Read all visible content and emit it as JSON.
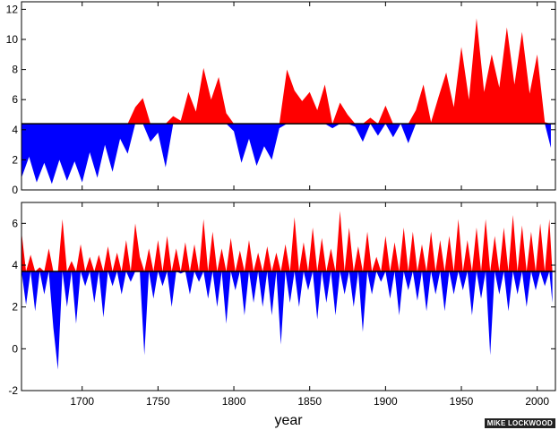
{
  "credit": "MIKE LOCKWOOD",
  "colors": {
    "above": "#ff0000",
    "below": "#0000ff",
    "axis": "#000000",
    "baseline": "#000000"
  },
  "chart_data": [
    {
      "type": "area",
      "panel": "top",
      "title": "",
      "xlabel": "",
      "ylabel": "",
      "xlim": [
        1660,
        2012
      ],
      "ylim": [
        0,
        12.5
      ],
      "yticks": [
        0,
        2,
        4,
        6,
        8,
        10,
        12
      ],
      "baseline": 4.4,
      "fill": "above red, below blue",
      "x": [
        1660,
        1665,
        1670,
        1675,
        1680,
        1685,
        1690,
        1695,
        1700,
        1705,
        1710,
        1715,
        1720,
        1725,
        1730,
        1735,
        1740,
        1745,
        1750,
        1755,
        1760,
        1765,
        1770,
        1775,
        1780,
        1785,
        1790,
        1795,
        1800,
        1805,
        1810,
        1815,
        1820,
        1825,
        1830,
        1835,
        1840,
        1845,
        1850,
        1855,
        1860,
        1865,
        1870,
        1875,
        1880,
        1885,
        1890,
        1895,
        1900,
        1905,
        1910,
        1915,
        1920,
        1925,
        1930,
        1935,
        1940,
        1945,
        1950,
        1955,
        1960,
        1965,
        1970,
        1975,
        1980,
        1985,
        1990,
        1995,
        2000,
        2005,
        2009
      ],
      "values": [
        0.8,
        2.2,
        0.5,
        1.8,
        0.4,
        2.0,
        0.6,
        1.9,
        0.5,
        2.5,
        0.8,
        3.0,
        1.2,
        3.4,
        2.4,
        5.5,
        6.1,
        3.2,
        3.8,
        1.5,
        4.9,
        4.6,
        6.5,
        5.2,
        8.1,
        6.0,
        7.5,
        5.1,
        3.9,
        1.8,
        3.4,
        1.6,
        2.9,
        2.0,
        4.1,
        8.0,
        6.6,
        5.9,
        6.5,
        5.3,
        7.0,
        4.1,
        5.8,
        5.0,
        4.2,
        3.2,
        4.8,
        3.6,
        5.6,
        3.5,
        4.4,
        3.1,
        5.3,
        7.0,
        4.5,
        6.2,
        7.8,
        5.5,
        9.5,
        6.0,
        11.4,
        6.5,
        9.0,
        6.8,
        10.8,
        7.0,
        10.5,
        6.4,
        9.0,
        4.5,
        2.8
      ]
    },
    {
      "type": "area",
      "panel": "bottom",
      "title": "",
      "xlabel": "year",
      "ylabel": "",
      "xlim": [
        1660,
        2012
      ],
      "ylim": [
        -2,
        7
      ],
      "yticks": [
        -2,
        0,
        2,
        4,
        6
      ],
      "xticks": [
        1700,
        1750,
        1800,
        1850,
        1900,
        1950,
        2000
      ],
      "baseline": 3.7,
      "fill": "above red, below blue",
      "x": [
        1660,
        1663,
        1666,
        1669,
        1672,
        1675,
        1678,
        1681,
        1684,
        1687,
        1690,
        1693,
        1696,
        1699,
        1702,
        1705,
        1708,
        1711,
        1714,
        1717,
        1720,
        1723,
        1726,
        1729,
        1732,
        1735,
        1738,
        1741,
        1744,
        1747,
        1750,
        1753,
        1756,
        1759,
        1762,
        1765,
        1768,
        1771,
        1774,
        1777,
        1780,
        1783,
        1786,
        1789,
        1792,
        1795,
        1798,
        1801,
        1804,
        1807,
        1810,
        1813,
        1816,
        1819,
        1822,
        1825,
        1828,
        1831,
        1834,
        1837,
        1840,
        1843,
        1846,
        1849,
        1852,
        1855,
        1858,
        1861,
        1864,
        1867,
        1870,
        1873,
        1876,
        1879,
        1882,
        1885,
        1888,
        1891,
        1894,
        1897,
        1900,
        1903,
        1906,
        1909,
        1912,
        1915,
        1918,
        1921,
        1924,
        1927,
        1930,
        1933,
        1936,
        1939,
        1942,
        1945,
        1948,
        1951,
        1954,
        1957,
        1960,
        1963,
        1966,
        1969,
        1972,
        1975,
        1978,
        1981,
        1984,
        1987,
        1990,
        1993,
        1996,
        1999,
        2002,
        2005,
        2008,
        2010
      ],
      "values": [
        5.6,
        2.1,
        4.5,
        1.8,
        3.9,
        2.6,
        4.8,
        1.0,
        -1.0,
        6.2,
        2.0,
        4.2,
        1.2,
        5.0,
        3.0,
        4.4,
        2.2,
        4.5,
        1.5,
        4.9,
        3.0,
        4.6,
        2.6,
        5.2,
        3.2,
        6.0,
        4.4,
        -0.3,
        4.8,
        2.4,
        5.2,
        3.0,
        5.4,
        2.0,
        4.8,
        3.6,
        5.1,
        2.6,
        5.0,
        3.2,
        6.2,
        2.4,
        5.6,
        2.0,
        4.8,
        1.2,
        5.3,
        2.8,
        4.7,
        1.6,
        5.2,
        2.2,
        4.6,
        2.0,
        4.9,
        1.6,
        4.6,
        0.2,
        5.0,
        2.2,
        6.3,
        2.0,
        5.1,
        2.8,
        5.8,
        1.4,
        5.3,
        2.2,
        4.8,
        1.6,
        6.6,
        2.6,
        5.8,
        2.0,
        4.9,
        0.8,
        5.6,
        2.6,
        4.4,
        3.2,
        5.4,
        2.4,
        5.1,
        1.6,
        5.8,
        2.8,
        5.6,
        2.3,
        5.0,
        1.8,
        5.6,
        2.6,
        5.2,
        1.8,
        5.4,
        2.6,
        6.2,
        2.8,
        5.2,
        1.6,
        5.8,
        2.4,
        6.2,
        -0.3,
        5.4,
        2.6,
        5.8,
        1.8,
        6.4,
        2.6,
        5.9,
        2.0,
        5.6,
        2.8,
        6.0,
        3.0,
        6.2,
        2.2
      ]
    }
  ]
}
